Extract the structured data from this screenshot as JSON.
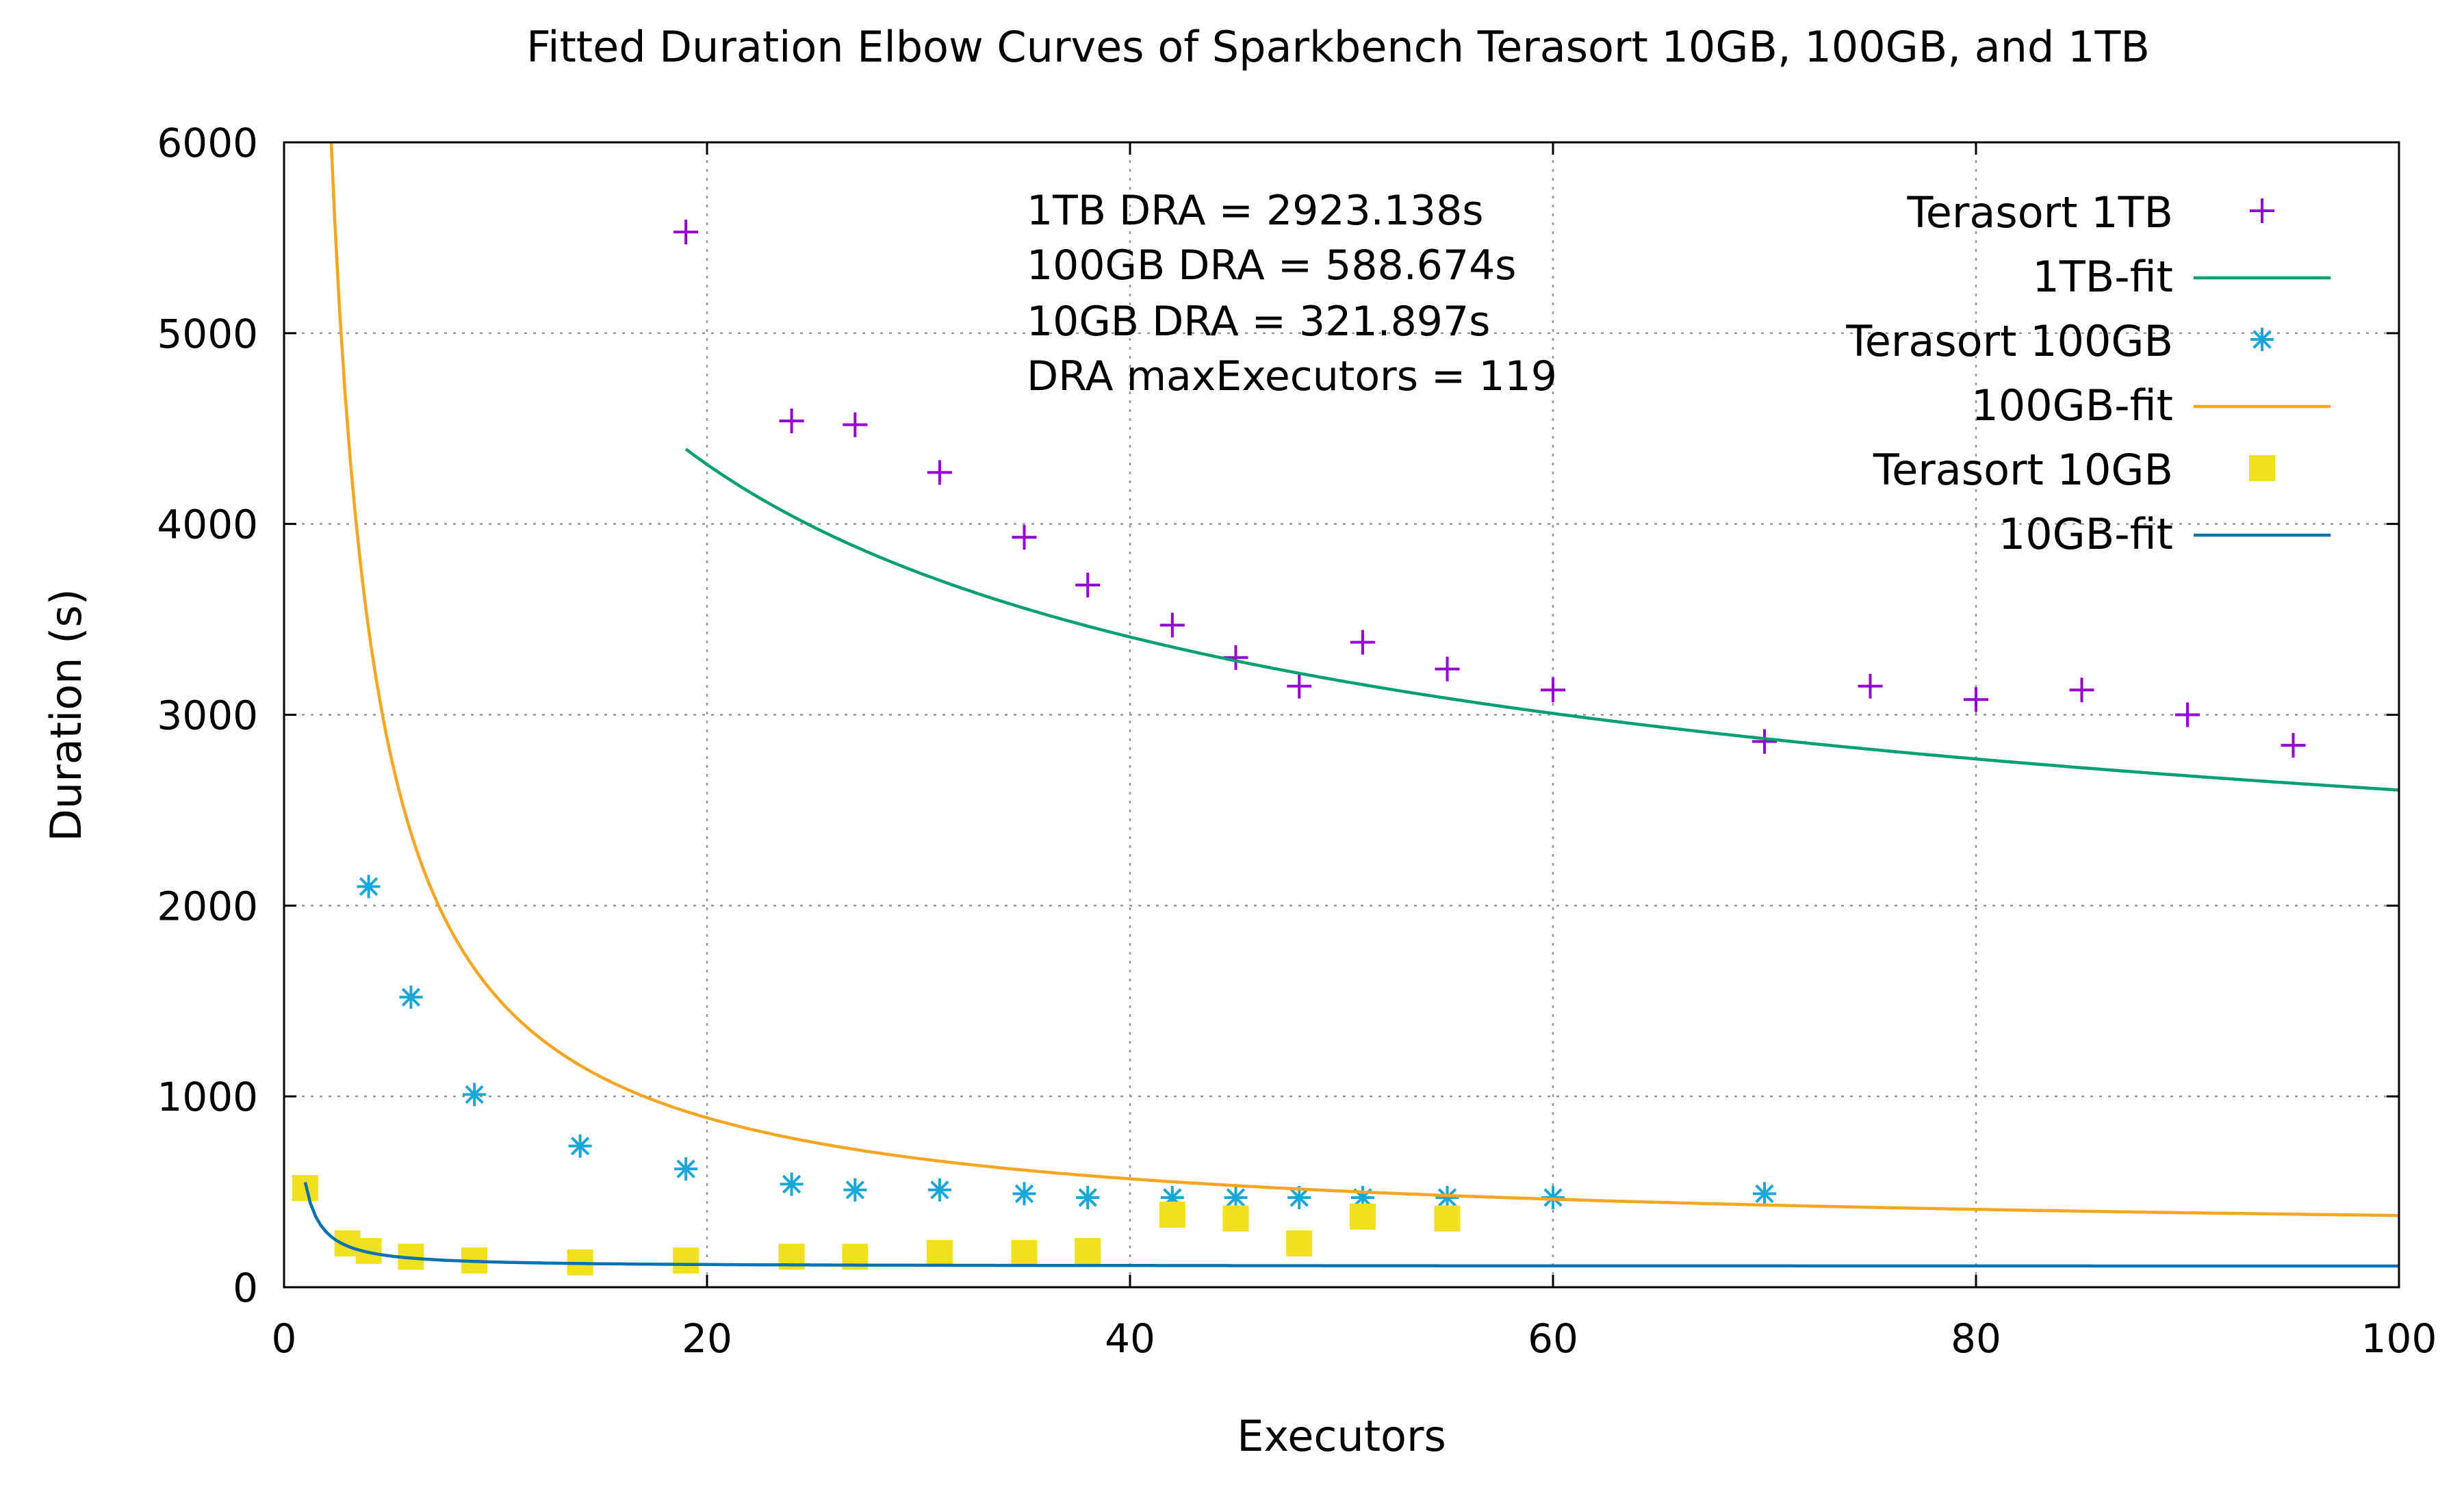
{
  "chart_data": {
    "type": "scatter",
    "title": "Fitted Duration Elbow Curves of Sparkbench Terasort 10GB, 100GB, and 1TB",
    "xlabel": "Executors",
    "ylabel": "Duration (s)",
    "xlim": [
      0,
      100
    ],
    "ylim": [
      0,
      6000
    ],
    "xticks": [
      "0",
      "20",
      "40",
      "60",
      "80",
      "100"
    ],
    "yticks": [
      "0",
      "1000",
      "2000",
      "3000",
      "4000",
      "5000",
      "6000"
    ],
    "grid": true,
    "legend_position": "top-right",
    "annotations": [
      "1TB DRA = 2923.138s",
      "100GB DRA = 588.674s",
      "10GB DRA = 321.897s",
      "DRA maxExecutors = 119"
    ],
    "series": [
      {
        "name": "Terasort 1TB",
        "kind": "points",
        "marker": "plus",
        "color": "#9400d3",
        "points": [
          [
            19,
            5530
          ],
          [
            24,
            4540
          ],
          [
            27,
            4520
          ],
          [
            31,
            4270
          ],
          [
            35,
            3930
          ],
          [
            38,
            3680
          ],
          [
            42,
            3470
          ],
          [
            45,
            3300
          ],
          [
            48,
            3150
          ],
          [
            51,
            3380
          ],
          [
            55,
            3240
          ],
          [
            60,
            3130
          ],
          [
            70,
            2860
          ],
          [
            75,
            3150
          ],
          [
            80,
            3080
          ],
          [
            85,
            3130
          ],
          [
            90,
            3000
          ],
          [
            95,
            2840
          ]
        ]
      },
      {
        "name": "1TB-fit",
        "kind": "fit",
        "color": "#009e73",
        "fit": {
          "a": 1225,
          "b": 13805,
          "exponent": 0.5,
          "x_start": 19,
          "x_end": 100
        }
      },
      {
        "name": "Terasort 100GB",
        "kind": "points",
        "marker": "asterisk",
        "color": "#1aa7d8",
        "points": [
          [
            4,
            2100
          ],
          [
            6,
            1520
          ],
          [
            9,
            1010
          ],
          [
            14,
            740
          ],
          [
            19,
            620
          ],
          [
            24,
            540
          ],
          [
            27,
            510
          ],
          [
            31,
            510
          ],
          [
            35,
            490
          ],
          [
            38,
            470
          ],
          [
            42,
            470
          ],
          [
            45,
            470
          ],
          [
            48,
            470
          ],
          [
            51,
            470
          ],
          [
            55,
            470
          ],
          [
            60,
            470
          ],
          [
            70,
            490
          ]
        ]
      },
      {
        "name": "100GB-fit",
        "kind": "fit",
        "color": "#f5a623",
        "fit": {
          "a": 248,
          "b": 12800,
          "exponent": 1,
          "x_start": 1.9,
          "x_end": 100
        }
      },
      {
        "name": "Terasort 10GB",
        "kind": "points",
        "marker": "square",
        "color": "#f0e020",
        "points": [
          [
            1,
            520
          ],
          [
            3,
            230
          ],
          [
            4,
            190
          ],
          [
            6,
            160
          ],
          [
            9,
            140
          ],
          [
            14,
            130
          ],
          [
            19,
            140
          ],
          [
            24,
            160
          ],
          [
            27,
            160
          ],
          [
            31,
            180
          ],
          [
            35,
            180
          ],
          [
            38,
            190
          ],
          [
            42,
            380
          ],
          [
            45,
            360
          ],
          [
            48,
            230
          ],
          [
            51,
            370
          ],
          [
            55,
            360
          ]
        ]
      },
      {
        "name": "10GB-fit",
        "kind": "fit",
        "color": "#0072b2",
        "fit": {
          "a": 110,
          "b": 440,
          "exponent": 1.3,
          "x_start": 1,
          "x_end": 100
        }
      }
    ]
  }
}
